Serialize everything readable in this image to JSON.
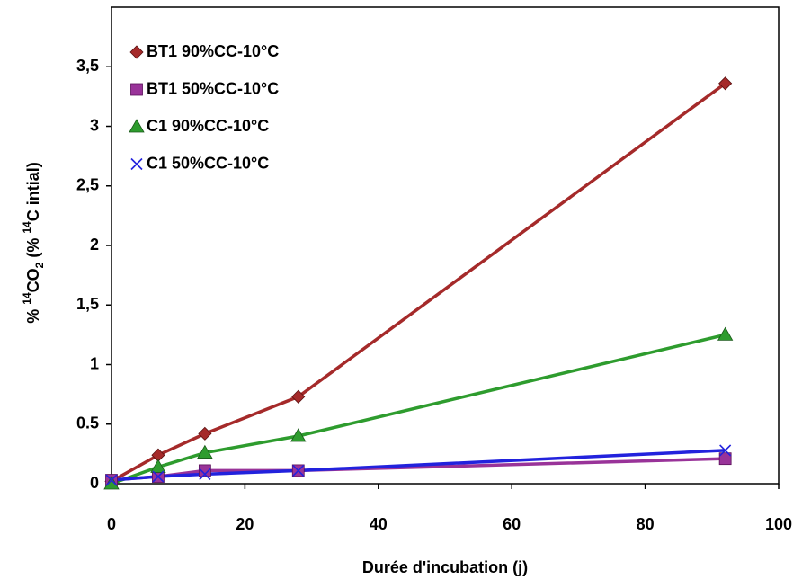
{
  "chart_data": {
    "type": "scatter",
    "x_label": "Durée d'incubation (j)",
    "y_label": [
      "% ",
      "14",
      "CO",
      "2",
      " (% ",
      "14",
      "C intial)"
    ],
    "x": [
      0,
      7,
      14,
      28,
      92
    ],
    "series": [
      {
        "name": "BT1 90%CC-10°C",
        "color": "#a52a2a",
        "marker": "diamond",
        "values": [
          0.02,
          0.24,
          0.42,
          0.73,
          3.36
        ]
      },
      {
        "name": "BT1 50%CC-10°C",
        "color": "#993399",
        "marker": "square",
        "values": [
          0.03,
          0.06,
          0.11,
          0.11,
          0.21
        ]
      },
      {
        "name": "C1 90%CC-10°C",
        "color": "#2e9c2e",
        "marker": "triangle",
        "values": [
          0,
          0.14,
          0.26,
          0.4,
          1.25
        ]
      },
      {
        "name": "C1 50%CC-10°C",
        "color": "#2222dd",
        "marker": "x",
        "values": [
          0.03,
          0.06,
          0.08,
          0.11,
          0.28
        ]
      }
    ],
    "xlim": [
      0,
      100
    ],
    "xticks": [
      0,
      20,
      40,
      60,
      80,
      100
    ],
    "ylim": [
      0,
      4
    ],
    "yticks": [
      0,
      {
        "value": 0.5,
        "label": "0.5"
      },
      1,
      {
        "value": 1.5,
        "label": "1,5"
      },
      2,
      {
        "value": 2.5,
        "label": "2,5"
      },
      3,
      {
        "value": 3.5,
        "label": "3,5"
      }
    ],
    "legend": "top-left"
  }
}
